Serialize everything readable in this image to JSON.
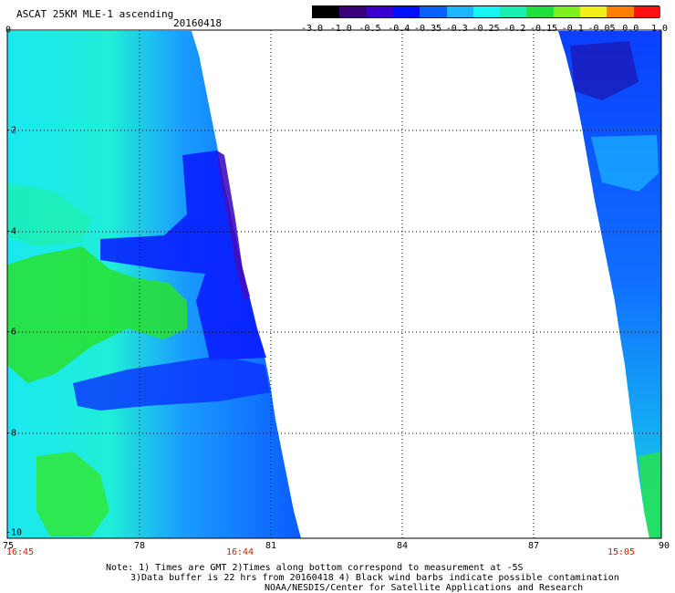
{
  "header": {
    "title": "ASCAT 25KM MLE-1 ascending",
    "date": "20160418"
  },
  "colorbar": {
    "labels": [
      "-3.0",
      "-1.0",
      "-0.5",
      "-0.4",
      "-0.35",
      "-0.3",
      "-0.25",
      "-0.2",
      "-0.15",
      "-0.1",
      "-0.05",
      "0.0",
      "1.0"
    ],
    "colors": [
      "#000000",
      "#3b0078",
      "#3a00d0",
      "#0010ff",
      "#0a60ff",
      "#1ab6ff",
      "#18f4f4",
      "#18f0b0",
      "#20e040",
      "#7ef020",
      "#f0f018",
      "#ff8000",
      "#ff1010"
    ]
  },
  "axes": {
    "y_ticks": [
      "0",
      "-2",
      "-4",
      "-6",
      "-8",
      "-10"
    ],
    "x_ticks": [
      "75",
      "78",
      "81",
      "84",
      "87",
      "90"
    ]
  },
  "times": [
    "16:45",
    "16:44",
    "15:05"
  ],
  "notes": {
    "line1": "Note: 1) Times are GMT 2)Times along bottom correspond to measurement at -5S",
    "line2": "3)Data buffer is 22 hrs from 20160418 4) Black wind barbs indicate possible contamination",
    "line3": "NOAA/NESDIS/Center for Satellite Applications and Research"
  }
}
